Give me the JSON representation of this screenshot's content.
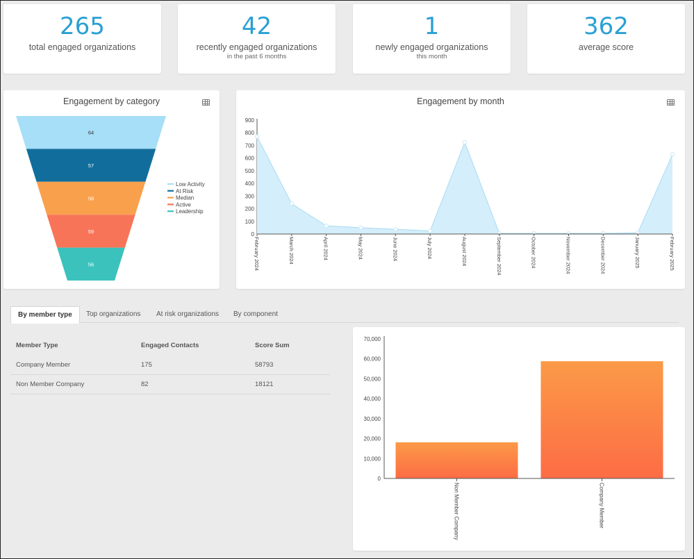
{
  "kpis": [
    {
      "value": "265",
      "label": "total engaged organizations",
      "sub": ""
    },
    {
      "value": "42",
      "label": "recently engaged organizations",
      "sub": "in the past 6 months"
    },
    {
      "value": "1",
      "label": "newly engaged organizations",
      "sub": "this month"
    },
    {
      "value": "362",
      "label": "average score",
      "sub": ""
    }
  ],
  "category_chart": {
    "title": "Engagement by category",
    "icon": "table-icon",
    "chart_data": {
      "type": "funnel",
      "categories": [
        "Low Activity",
        "At Risk",
        "Median",
        "Active",
        "Leadership"
      ],
      "values": [
        64,
        57,
        58,
        59,
        56
      ],
      "colors": [
        "#a6dff7",
        "#116e9c",
        "#f9a04c",
        "#f87458",
        "#3cc2bd"
      ],
      "legend": "right"
    }
  },
  "month_chart": {
    "title": "Engagement by month",
    "icon": "table-icon",
    "chart_data": {
      "type": "area",
      "x": [
        "February 2024",
        "March 2024",
        "April 2024",
        "May 2024",
        "June 2024",
        "July 2024",
        "August 2024",
        "September 2024",
        "October 2024",
        "November 2024",
        "December 2024",
        "January 2025",
        "February 2025"
      ],
      "values": [
        770,
        240,
        65,
        50,
        38,
        25,
        725,
        5,
        5,
        5,
        5,
        10,
        630
      ],
      "ylim": [
        0,
        900
      ],
      "yticks": [
        "0",
        "100",
        "200",
        "300",
        "400",
        "500",
        "600",
        "700",
        "800",
        "900"
      ],
      "color": "#d4eefb",
      "line_color": "#a9dcf3"
    }
  },
  "tabs": [
    {
      "label": "By member type",
      "active": true
    },
    {
      "label": "Top organizations",
      "active": false
    },
    {
      "label": "At risk organizations",
      "active": false
    },
    {
      "label": "By component",
      "active": false
    }
  ],
  "member_table": {
    "headers": [
      "Member Type",
      "Engaged Contacts",
      "Score Sum"
    ],
    "rows": [
      [
        "Company Member",
        "175",
        "58793"
      ],
      [
        "Non Member Company",
        "82",
        "18121"
      ]
    ]
  },
  "member_chart": {
    "chart_data": {
      "type": "bar",
      "categories": [
        "Non Member Company",
        "Company Member"
      ],
      "values": [
        18121,
        58793
      ],
      "ylim": [
        0,
        70000
      ],
      "yticks": [
        "0",
        "10,000",
        "20,000",
        "30,000",
        "40,000",
        "50,000",
        "60,000",
        "70,000"
      ],
      "bar_color_top": "#fb9a47",
      "bar_color_bottom": "#fd6c45"
    }
  }
}
